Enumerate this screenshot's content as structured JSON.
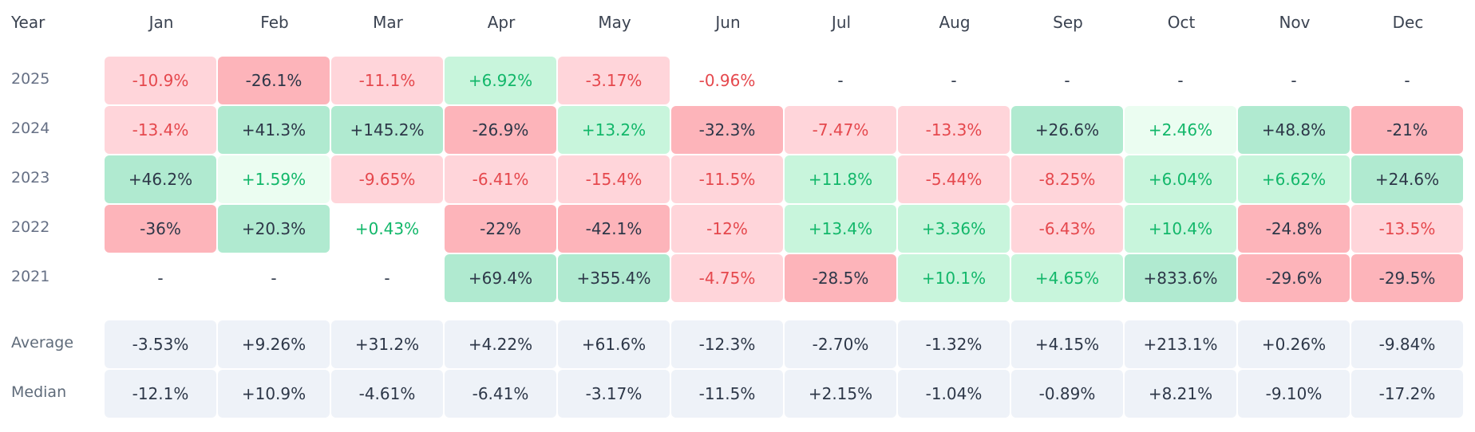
{
  "chart_data": {
    "type": "heatmap",
    "row_header": "Year",
    "columns": [
      "Jan",
      "Feb",
      "Mar",
      "Apr",
      "May",
      "Jun",
      "Jul",
      "Aug",
      "Sep",
      "Oct",
      "Nov",
      "Dec"
    ],
    "rows": [
      {
        "label": "2025",
        "values": [
          "-10.9%",
          "-26.1%",
          "-11.1%",
          "+6.92%",
          "-3.17%",
          "-0.96%",
          "-",
          "-",
          "-",
          "-",
          "-",
          "-"
        ]
      },
      {
        "label": "2024",
        "values": [
          "-13.4%",
          "+41.3%",
          "+145.2%",
          "-26.9%",
          "+13.2%",
          "-32.3%",
          "-7.47%",
          "-13.3%",
          "+26.6%",
          "+2.46%",
          "+48.8%",
          "-21%"
        ]
      },
      {
        "label": "2023",
        "values": [
          "+46.2%",
          "+1.59%",
          "-9.65%",
          "-6.41%",
          "-15.4%",
          "-11.5%",
          "+11.8%",
          "-5.44%",
          "-8.25%",
          "+6.04%",
          "+6.62%",
          "+24.6%"
        ]
      },
      {
        "label": "2022",
        "values": [
          "-36%",
          "+20.3%",
          "+0.43%",
          "-22%",
          "-42.1%",
          "-12%",
          "+13.4%",
          "+3.36%",
          "-6.43%",
          "+10.4%",
          "-24.8%",
          "-13.5%"
        ]
      },
      {
        "label": "2021",
        "values": [
          "-",
          "-",
          "-",
          "+69.4%",
          "+355.4%",
          "-4.75%",
          "-28.5%",
          "+10.1%",
          "+4.65%",
          "+833.6%",
          "-29.6%",
          "-29.5%"
        ]
      }
    ],
    "summary_rows": [
      {
        "label": "Average",
        "values": [
          "-3.53%",
          "+9.26%",
          "+31.2%",
          "+4.22%",
          "+61.6%",
          "-12.3%",
          "-2.70%",
          "-1.32%",
          "+4.15%",
          "+213.1%",
          "+0.26%",
          "-9.84%"
        ]
      },
      {
        "label": "Median",
        "values": [
          "-12.1%",
          "+10.9%",
          "-4.61%",
          "-6.41%",
          "-3.17%",
          "-11.5%",
          "+2.15%",
          "-1.04%",
          "-0.89%",
          "+8.21%",
          "-9.10%",
          "-17.2%"
        ]
      }
    ],
    "colors": {
      "neg_text": "#e5484d",
      "pos_text": "#12b76a",
      "strong_text": "#2d3748",
      "neg_fills": [
        "#fde8ea",
        "#ffd5da",
        "#fdb4ba"
      ],
      "pos_fills": [
        "#ebfdf1",
        "#c8f5dc",
        "#b0ead0"
      ],
      "summary_fill": "#eef2f8"
    }
  }
}
